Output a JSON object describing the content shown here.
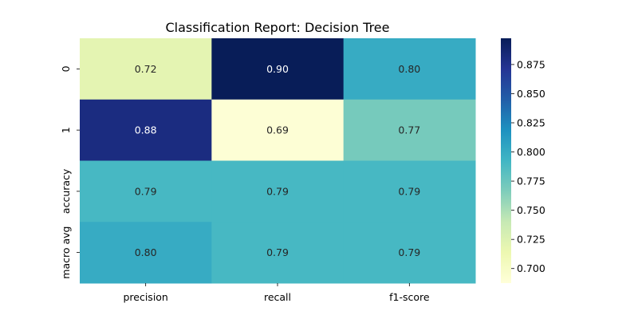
{
  "chart_data": {
    "type": "heatmap",
    "title": "Classification Report: Decision Tree",
    "xlabel": "",
    "ylabel": "",
    "columns": [
      "precision",
      "recall",
      "f1-score"
    ],
    "rows": [
      "0",
      "1",
      "accuracy",
      "macro avg"
    ],
    "values": [
      [
        0.72,
        0.9,
        0.8
      ],
      [
        0.88,
        0.69,
        0.77
      ],
      [
        0.79,
        0.79,
        0.79
      ],
      [
        0.8,
        0.79,
        0.79
      ]
    ],
    "value_labels": [
      [
        "0.72",
        "0.90",
        "0.80"
      ],
      [
        "0.88",
        "0.69",
        "0.77"
      ],
      [
        "0.79",
        "0.79",
        "0.79"
      ],
      [
        "0.80",
        "0.79",
        "0.79"
      ]
    ],
    "colormap": "YlGnBu",
    "color_range": [
      0.6875,
      0.8975
    ],
    "colorbar_ticks": [
      "0.700",
      "0.725",
      "0.750",
      "0.775",
      "0.800",
      "0.825",
      "0.850",
      "0.875"
    ],
    "grid": false,
    "legend": "colorbar-right"
  }
}
